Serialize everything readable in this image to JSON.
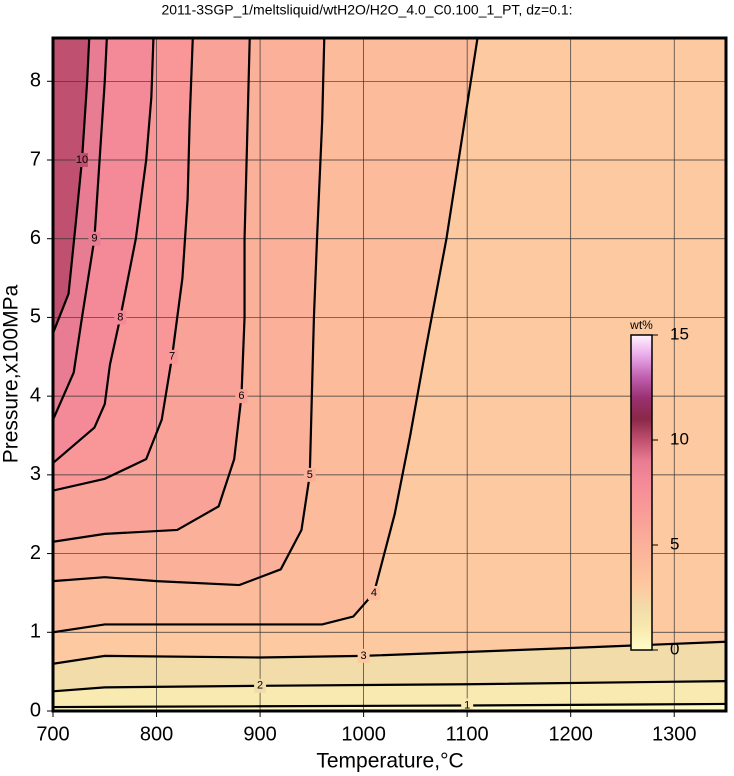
{
  "chart_data": {
    "type": "contour",
    "title": "2011-3SGP_1/meltsliquid/wtH2O/H2O_4.0_C0.100_1_PT, dz=0.1:",
    "x_label": "Temperature,°C",
    "y_label": "Pressure,x100MPa",
    "xlim": [
      700,
      1350
    ],
    "ylim": [
      0,
      8.55
    ],
    "xticks": [
      700,
      800,
      900,
      1000,
      1100,
      1200,
      1300
    ],
    "yticks": [
      0,
      1,
      2,
      3,
      4,
      5,
      6,
      7,
      8
    ],
    "grid": true,
    "colorbar": {
      "label": "wt%",
      "lim": [
        0,
        15
      ],
      "ticks": [
        0,
        5,
        10,
        15
      ]
    },
    "colormap": [
      "#fffcc8",
      "#f8eab0",
      "#f2dcaa",
      "#fdc9a0",
      "#fcbc9c",
      "#fbb09a",
      "#f9a398",
      "#f89698",
      "#f48a98",
      "#e87c92",
      "#c05070",
      "#8a2848",
      "#9a3070",
      "#c060b0",
      "#e8a8e8",
      "#fff4ff"
    ],
    "contours": [
      {
        "level": 1,
        "x": [
          700,
          900,
          1100,
          1350
        ],
        "y": [
          0.05,
          0.06,
          0.07,
          0.09
        ]
      },
      {
        "level": 2,
        "x": [
          700,
          750,
          900,
          1100,
          1350
        ],
        "y": [
          0.25,
          0.3,
          0.32,
          0.34,
          0.38
        ]
      },
      {
        "level": 3,
        "x": [
          700,
          750,
          900,
          1000,
          1200,
          1350
        ],
        "y": [
          0.6,
          0.7,
          0.68,
          0.7,
          0.8,
          0.88
        ]
      },
      {
        "level": 4,
        "x": [
          700,
          750,
          900,
          960,
          990,
          1010,
          1030,
          1045,
          1060,
          1080,
          1110
        ],
        "y": [
          1.0,
          1.1,
          1.1,
          1.1,
          1.2,
          1.5,
          2.5,
          3.5,
          4.6,
          6.0,
          8.55
        ]
      },
      {
        "level": 5,
        "x": [
          700,
          750,
          800,
          880,
          920,
          940,
          948,
          950,
          952,
          955,
          960,
          962
        ],
        "y": [
          1.65,
          1.7,
          1.65,
          1.6,
          1.8,
          2.3,
          3.0,
          4.0,
          5.0,
          6.0,
          7.5,
          8.55
        ]
      },
      {
        "level": 6,
        "x": [
          700,
          750,
          820,
          860,
          875,
          882,
          885,
          885,
          887,
          890
        ],
        "y": [
          2.15,
          2.25,
          2.3,
          2.6,
          3.2,
          4.0,
          5.0,
          6.0,
          7.0,
          8.55
        ]
      },
      {
        "level": 7,
        "x": [
          700,
          750,
          790,
          805,
          815,
          825,
          830,
          832,
          835
        ],
        "y": [
          2.8,
          2.95,
          3.2,
          3.7,
          4.5,
          5.5,
          6.5,
          7.5,
          8.55
        ]
      },
      {
        "level": 8,
        "x": [
          700,
          740,
          750,
          755,
          765,
          780,
          790,
          795,
          797
        ],
        "y": [
          3.15,
          3.6,
          3.9,
          4.4,
          5.0,
          6.0,
          7.0,
          7.8,
          8.55
        ]
      },
      {
        "level": 9,
        "x": [
          700,
          720,
          728,
          740,
          745,
          750,
          752
        ],
        "y": [
          3.7,
          4.3,
          5.0,
          6.0,
          7.0,
          8.0,
          8.55
        ]
      },
      {
        "level": 10,
        "x": [
          700,
          715,
          722,
          728,
          733,
          735
        ],
        "y": [
          4.8,
          5.3,
          6.2,
          7.0,
          8.0,
          8.55
        ]
      }
    ]
  }
}
